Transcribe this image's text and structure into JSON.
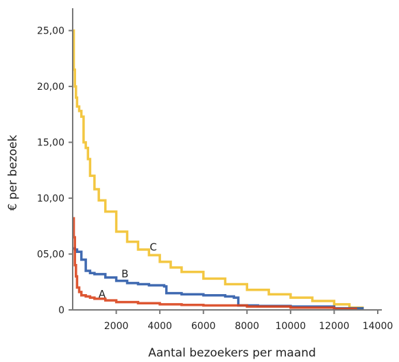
{
  "chart_data": {
    "type": "line",
    "title": "",
    "xlabel": "Aantal bezoekers per maand",
    "ylabel": "€ per bezoek",
    "xlim": [
      0,
      14000
    ],
    "ylim": [
      0,
      27
    ],
    "grid": false,
    "x_ticks": [
      2000,
      4000,
      6000,
      8000,
      10000,
      12000,
      14000
    ],
    "x_tick_labels": [
      "2000",
      "4000",
      "6000",
      "8000",
      "10000",
      "12000",
      "14000"
    ],
    "y_ticks": [
      0,
      5,
      10,
      15,
      20,
      25
    ],
    "y_tick_labels": [
      "0",
      "05,00",
      "10,00",
      "15,00",
      "20,00",
      "25,00"
    ],
    "series": [
      {
        "name": "C",
        "color": "#f2c12e",
        "x": [
          0,
          50,
          100,
          150,
          200,
          300,
          400,
          500,
          600,
          700,
          800,
          1000,
          1200,
          1500,
          2000,
          2500,
          3000,
          3500,
          4000,
          4500,
          5000,
          6000,
          7000,
          8000,
          9000,
          10000,
          11000,
          12000,
          12700,
          13300
        ],
        "y": [
          25,
          21.5,
          20,
          19,
          18.2,
          17.8,
          17.3,
          15,
          14.5,
          13.5,
          12,
          10.8,
          9.8,
          8.8,
          7,
          6.1,
          5.4,
          4.9,
          4.3,
          3.8,
          3.4,
          2.8,
          2.3,
          1.8,
          1.4,
          1.1,
          0.8,
          0.5,
          0.2,
          0
        ]
      },
      {
        "name": "B",
        "color": "#2b5aa8",
        "x": [
          0,
          100,
          200,
          400,
          600,
          800,
          1000,
          1500,
          2000,
          2500,
          3000,
          3500,
          4200,
          4300,
          5000,
          6000,
          7000,
          7400,
          7600,
          8500,
          10000,
          12000,
          13300
        ],
        "y": [
          5.5,
          5.4,
          5.2,
          4.5,
          3.5,
          3.3,
          3.2,
          2.9,
          2.6,
          2.4,
          2.3,
          2.2,
          2.1,
          1.5,
          1.4,
          1.3,
          1.2,
          1.1,
          0.4,
          0.35,
          0.3,
          0.15,
          0
        ]
      },
      {
        "name": "A",
        "color": "#d9441c",
        "x": [
          0,
          50,
          100,
          150,
          200,
          300,
          400,
          600,
          800,
          1000,
          1500,
          2000,
          3000,
          4000,
          5000,
          6000,
          8000,
          10000,
          12000,
          13000
        ],
        "y": [
          8.2,
          6.5,
          4,
          3,
          2,
          1.6,
          1.3,
          1.2,
          1.1,
          1.0,
          0.85,
          0.7,
          0.6,
          0.5,
          0.45,
          0.4,
          0.3,
          0.2,
          0.1,
          0
        ]
      }
    ],
    "annotations": [
      {
        "text": "C",
        "x": 3700,
        "y": 5.3
      },
      {
        "text": "B",
        "x": 2400,
        "y": 2.9
      },
      {
        "text": "A",
        "x": 1350,
        "y": 1.1
      }
    ]
  }
}
